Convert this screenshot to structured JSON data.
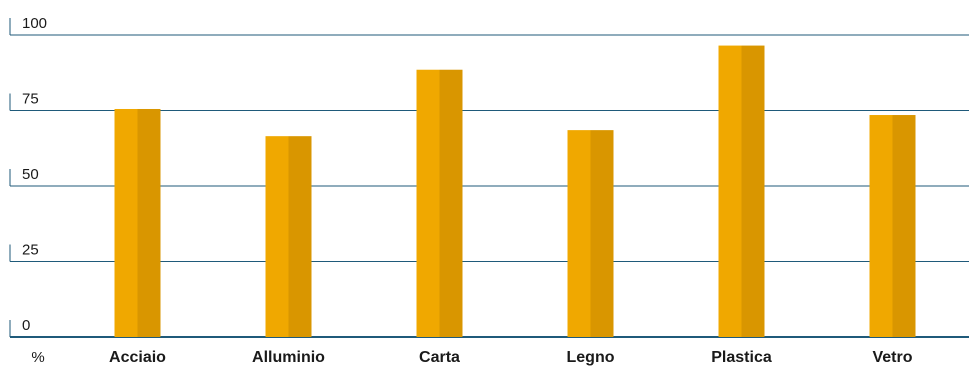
{
  "chart_data": {
    "type": "bar",
    "categories": [
      "Acciaio",
      "Alluminio",
      "Carta",
      "Legno",
      "Plastica",
      "Vetro"
    ],
    "values": [
      75.5,
      66.5,
      88.5,
      68.5,
      96.5,
      73.5
    ],
    "ylim": [
      0,
      100
    ],
    "yticks": [
      0,
      25,
      50,
      75,
      100
    ],
    "ylabel": "%",
    "xlabel": "",
    "title": "",
    "grid": true,
    "colors": {
      "bar_light": "#f0a800",
      "bar_dark": "#d99600",
      "grid": "#1f5a7a",
      "text": "#1a1a1a"
    }
  }
}
